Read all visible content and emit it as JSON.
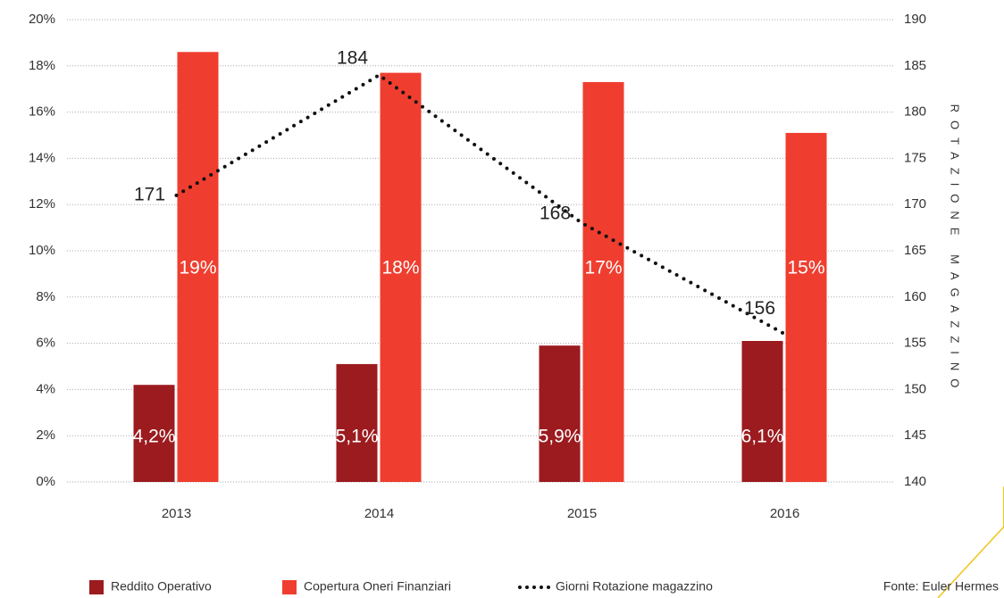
{
  "chart_data": {
    "type": "bar",
    "categories": [
      "2013",
      "2014",
      "2015",
      "2016"
    ],
    "series": [
      {
        "name": "Reddito Operativo",
        "color": "#9b1b1f",
        "values": [
          4.2,
          5.1,
          5.9,
          6.1
        ],
        "value_labels": [
          "4,2%",
          "5,1%",
          "5,9%",
          "6,1%"
        ]
      },
      {
        "name": "Copertura Oneri Finanziari",
        "color": "#ef3e2f",
        "values": [
          18.6,
          17.7,
          17.3,
          15.1
        ],
        "value_labels": [
          "19%",
          "18%",
          "17%",
          "15%"
        ]
      },
      {
        "name": "Giorni Rotazione magazzino",
        "type": "line",
        "axis": "y2",
        "color": "#111111",
        "values": [
          171,
          184,
          168,
          156
        ]
      }
    ],
    "ylim": [
      0,
      20
    ],
    "yticks": [
      {
        "value": 0,
        "label": "0%"
      },
      {
        "value": 2,
        "label": "2%"
      },
      {
        "value": 4,
        "label": "4%"
      },
      {
        "value": 6,
        "label": "6%"
      },
      {
        "value": 8,
        "label": "8%"
      },
      {
        "value": 10,
        "label": "10%"
      },
      {
        "value": 12,
        "label": "12%"
      },
      {
        "value": 14,
        "label": "14%"
      },
      {
        "value": 16,
        "label": "16%"
      },
      {
        "value": 18,
        "label": "18%"
      },
      {
        "value": 20,
        "label": "20%"
      }
    ],
    "y2lim": [
      140,
      190
    ],
    "y2ticks": [
      140,
      145,
      150,
      155,
      160,
      165,
      170,
      175,
      180,
      185,
      190
    ],
    "y2label": "ROTAZIONE MAGAZZINO",
    "source": "Fonte: Euler Hermes",
    "grid": true
  }
}
